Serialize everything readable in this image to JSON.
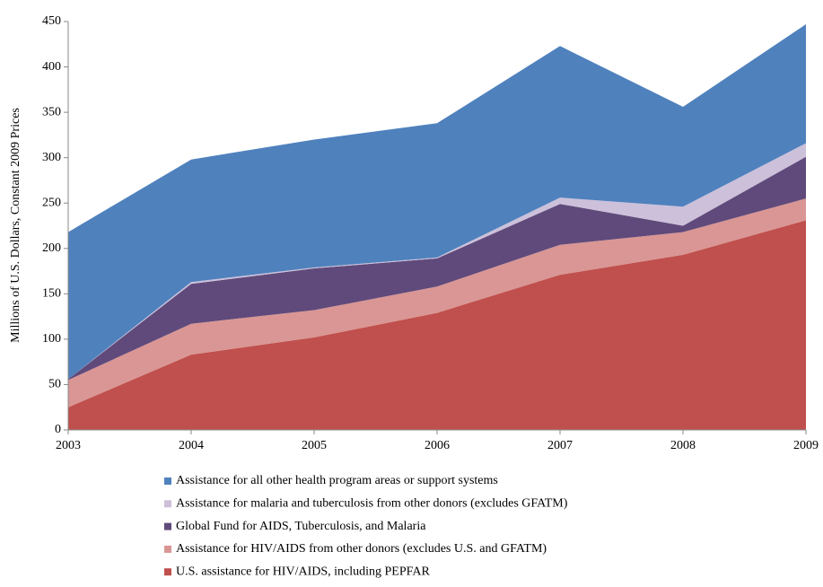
{
  "chart_data": {
    "type": "stacked_area",
    "y_label": "Millions of U.S. Dollars, Constant 2009 Prices",
    "x": [
      2003,
      2004,
      2005,
      2006,
      2007,
      2008,
      2009
    ],
    "xlim": [
      2003,
      2009
    ],
    "xticks": [
      2003,
      2004,
      2005,
      2006,
      2007,
      2008,
      2009
    ],
    "ylim": [
      0,
      450
    ],
    "yticks": [
      0,
      50,
      100,
      150,
      200,
      250,
      300,
      350,
      400,
      450
    ],
    "grid": false,
    "series": [
      {
        "name": "U.S. assistance for HIV/AIDS, including PEPFAR",
        "color": "#c0504d",
        "values": [
          25,
          83,
          102,
          129,
          171,
          193,
          231
        ]
      },
      {
        "name": "Assistance for HIV/AIDS from other donors (excludes U.S. and GFATM)",
        "color": "#d99694",
        "values": [
          30,
          34,
          30,
          29,
          33,
          25,
          24
        ]
      },
      {
        "name": "Global Fund for AIDS, Tuberculosis, and Malaria",
        "color": "#604a7b",
        "values": [
          1,
          44,
          46,
          31,
          45,
          7,
          46
        ]
      },
      {
        "name": "Assistance for malaria and tuberculosis from other donors (excludes GFATM)",
        "color": "#ccc0da",
        "values": [
          0,
          2,
          1,
          1,
          7,
          21,
          15
        ]
      },
      {
        "name": "Assistance for all other health program areas or support systems",
        "color": "#4f81bd",
        "values": [
          162,
          135,
          141,
          148,
          167,
          110,
          131
        ]
      }
    ]
  }
}
